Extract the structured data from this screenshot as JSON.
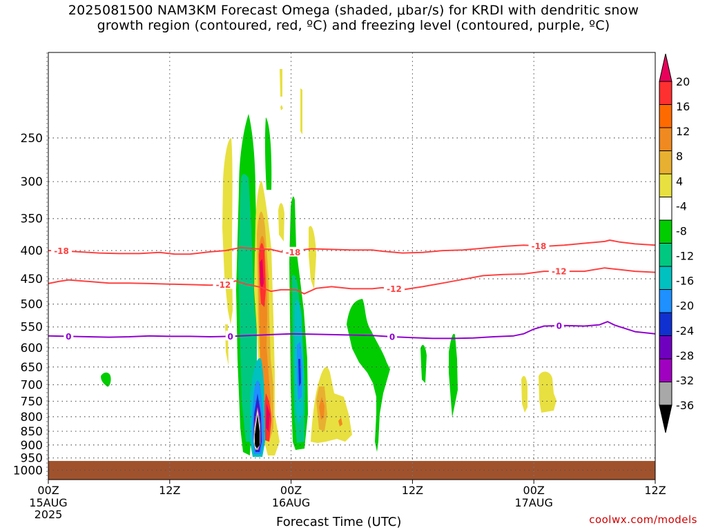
{
  "title": {
    "line1": "2025081500 NAM3KM Forecast Omega (shaded, μbar/s) for KRDI with dendritic snow",
    "line2": "growth region (contoured, red, ºC) and freezing level (contoured, purple, ºC)"
  },
  "credit": "coolwx.com/models",
  "chart_data": {
    "type": "heatmap",
    "x_axis": {
      "title": "Forecast Time (UTC)",
      "range_hours": [
        0,
        60
      ],
      "ticks": [
        {
          "hour": 0,
          "label": "00Z",
          "sub": [
            "15AUG",
            "2025"
          ]
        },
        {
          "hour": 12,
          "label": "12Z",
          "sub": []
        },
        {
          "hour": 24,
          "label": "00Z",
          "sub": [
            "16AUG"
          ]
        },
        {
          "hour": 36,
          "label": "12Z",
          "sub": []
        },
        {
          "hour": 48,
          "label": "00Z",
          "sub": [
            "17AUG"
          ]
        },
        {
          "hour": 60,
          "label": "12Z",
          "sub": []
        }
      ]
    },
    "y_axis": {
      "scale": "log-pressure",
      "range_hPa": [
        1040,
        175
      ],
      "ticks": [
        250,
        300,
        350,
        400,
        450,
        500,
        550,
        600,
        650,
        700,
        750,
        800,
        850,
        900,
        950,
        1000
      ],
      "grid": true
    },
    "colorbar": {
      "labels": [
        "20",
        "16",
        "12",
        "8",
        "4",
        "-4",
        "-8",
        "-12",
        "-16",
        "-20",
        "-24",
        "-28",
        "-32",
        "-36"
      ],
      "colors": [
        "#e8005a",
        "#ff3030",
        "#ff6a00",
        "#f08a20",
        "#e8b030",
        "#e8e040",
        "#ffffff",
        "#00cc00",
        "#00c880",
        "#00c0c0",
        "#1e90ff",
        "#1030d0",
        "#7000c0",
        "#a000c0",
        "#a8a8a8",
        "#000000"
      ]
    },
    "contours": [
      {
        "name": "-18",
        "color": "#ff4040",
        "points": [
          [
            0,
            400
          ],
          [
            1,
            400
          ],
          [
            3,
            402
          ],
          [
            5,
            404
          ],
          [
            7,
            405
          ],
          [
            9,
            405
          ],
          [
            11,
            403
          ],
          [
            12.5,
            406
          ],
          [
            14,
            406
          ],
          [
            16,
            402
          ],
          [
            17.5,
            400
          ],
          [
            19,
            395
          ],
          [
            20.5,
            397
          ],
          [
            22,
            398
          ],
          [
            23,
            402
          ],
          [
            24,
            404
          ],
          [
            25,
            399
          ],
          [
            26,
            397
          ],
          [
            28,
            398
          ],
          [
            30,
            399
          ],
          [
            32,
            399
          ],
          [
            33,
            401
          ],
          [
            35,
            404
          ],
          [
            37,
            403
          ],
          [
            39,
            400
          ],
          [
            41,
            399
          ],
          [
            43,
            396
          ],
          [
            45,
            393
          ],
          [
            47,
            391
          ],
          [
            49,
            393
          ],
          [
            51,
            391
          ],
          [
            53,
            388
          ],
          [
            55,
            385
          ],
          [
            55.5,
            383
          ],
          [
            56.5,
            386
          ],
          [
            58,
            389
          ],
          [
            60,
            391
          ]
        ],
        "labels": [
          [
            1.3,
            "-18"
          ],
          [
            24.2,
            "-18"
          ],
          [
            48.5,
            "-18"
          ]
        ]
      },
      {
        "name": "-12",
        "color": "#ff4040",
        "points": [
          [
            0,
            459
          ],
          [
            1,
            455
          ],
          [
            2,
            452
          ],
          [
            4,
            455
          ],
          [
            6,
            458
          ],
          [
            8,
            458
          ],
          [
            10,
            459
          ],
          [
            12,
            460
          ],
          [
            14,
            461
          ],
          [
            16,
            462
          ],
          [
            17.5,
            461
          ],
          [
            18.5,
            454
          ],
          [
            19.5,
            460
          ],
          [
            21,
            466
          ],
          [
            22,
            474
          ],
          [
            23,
            471
          ],
          [
            24.5,
            471
          ],
          [
            25.3,
            479
          ],
          [
            26.5,
            468
          ],
          [
            28,
            465
          ],
          [
            30,
            469
          ],
          [
            32,
            469
          ],
          [
            33,
            467
          ],
          [
            35,
            471
          ],
          [
            37,
            465
          ],
          [
            39,
            458
          ],
          [
            41,
            451
          ],
          [
            43,
            444
          ],
          [
            45,
            442
          ],
          [
            47,
            441
          ],
          [
            49,
            436
          ],
          [
            51,
            436
          ],
          [
            53,
            436
          ],
          [
            55,
            430
          ],
          [
            56,
            432
          ],
          [
            58,
            436
          ],
          [
            60,
            438
          ]
        ],
        "labels": [
          [
            17.3,
            "-12"
          ],
          [
            34.2,
            "-12"
          ],
          [
            50.5,
            "-12"
          ]
        ]
      },
      {
        "name": "0",
        "color": "#9000d0",
        "points": [
          [
            0,
            571
          ],
          [
            2,
            572
          ],
          [
            4,
            573
          ],
          [
            6,
            574
          ],
          [
            8,
            573
          ],
          [
            10,
            571
          ],
          [
            12,
            572
          ],
          [
            14,
            572
          ],
          [
            16,
            573
          ],
          [
            18,
            572
          ],
          [
            20,
            570
          ],
          [
            22,
            568
          ],
          [
            24,
            566
          ],
          [
            26,
            567
          ],
          [
            28,
            568
          ],
          [
            30,
            569
          ],
          [
            32,
            570
          ],
          [
            34,
            573
          ],
          [
            36,
            575
          ],
          [
            38,
            577
          ],
          [
            40,
            577
          ],
          [
            42,
            576
          ],
          [
            44,
            573
          ],
          [
            46,
            571
          ],
          [
            47,
            566
          ],
          [
            48,
            555
          ],
          [
            49,
            548
          ],
          [
            51,
            547
          ],
          [
            53,
            548
          ],
          [
            54.5,
            545
          ],
          [
            55.3,
            538
          ],
          [
            56,
            546
          ],
          [
            58,
            561
          ],
          [
            60,
            566
          ]
        ],
        "labels": [
          [
            2,
            "0"
          ],
          [
            18,
            "0"
          ],
          [
            34,
            "0"
          ],
          [
            50.5,
            "0"
          ]
        ]
      }
    ],
    "ground_level_hPa": 962
  }
}
